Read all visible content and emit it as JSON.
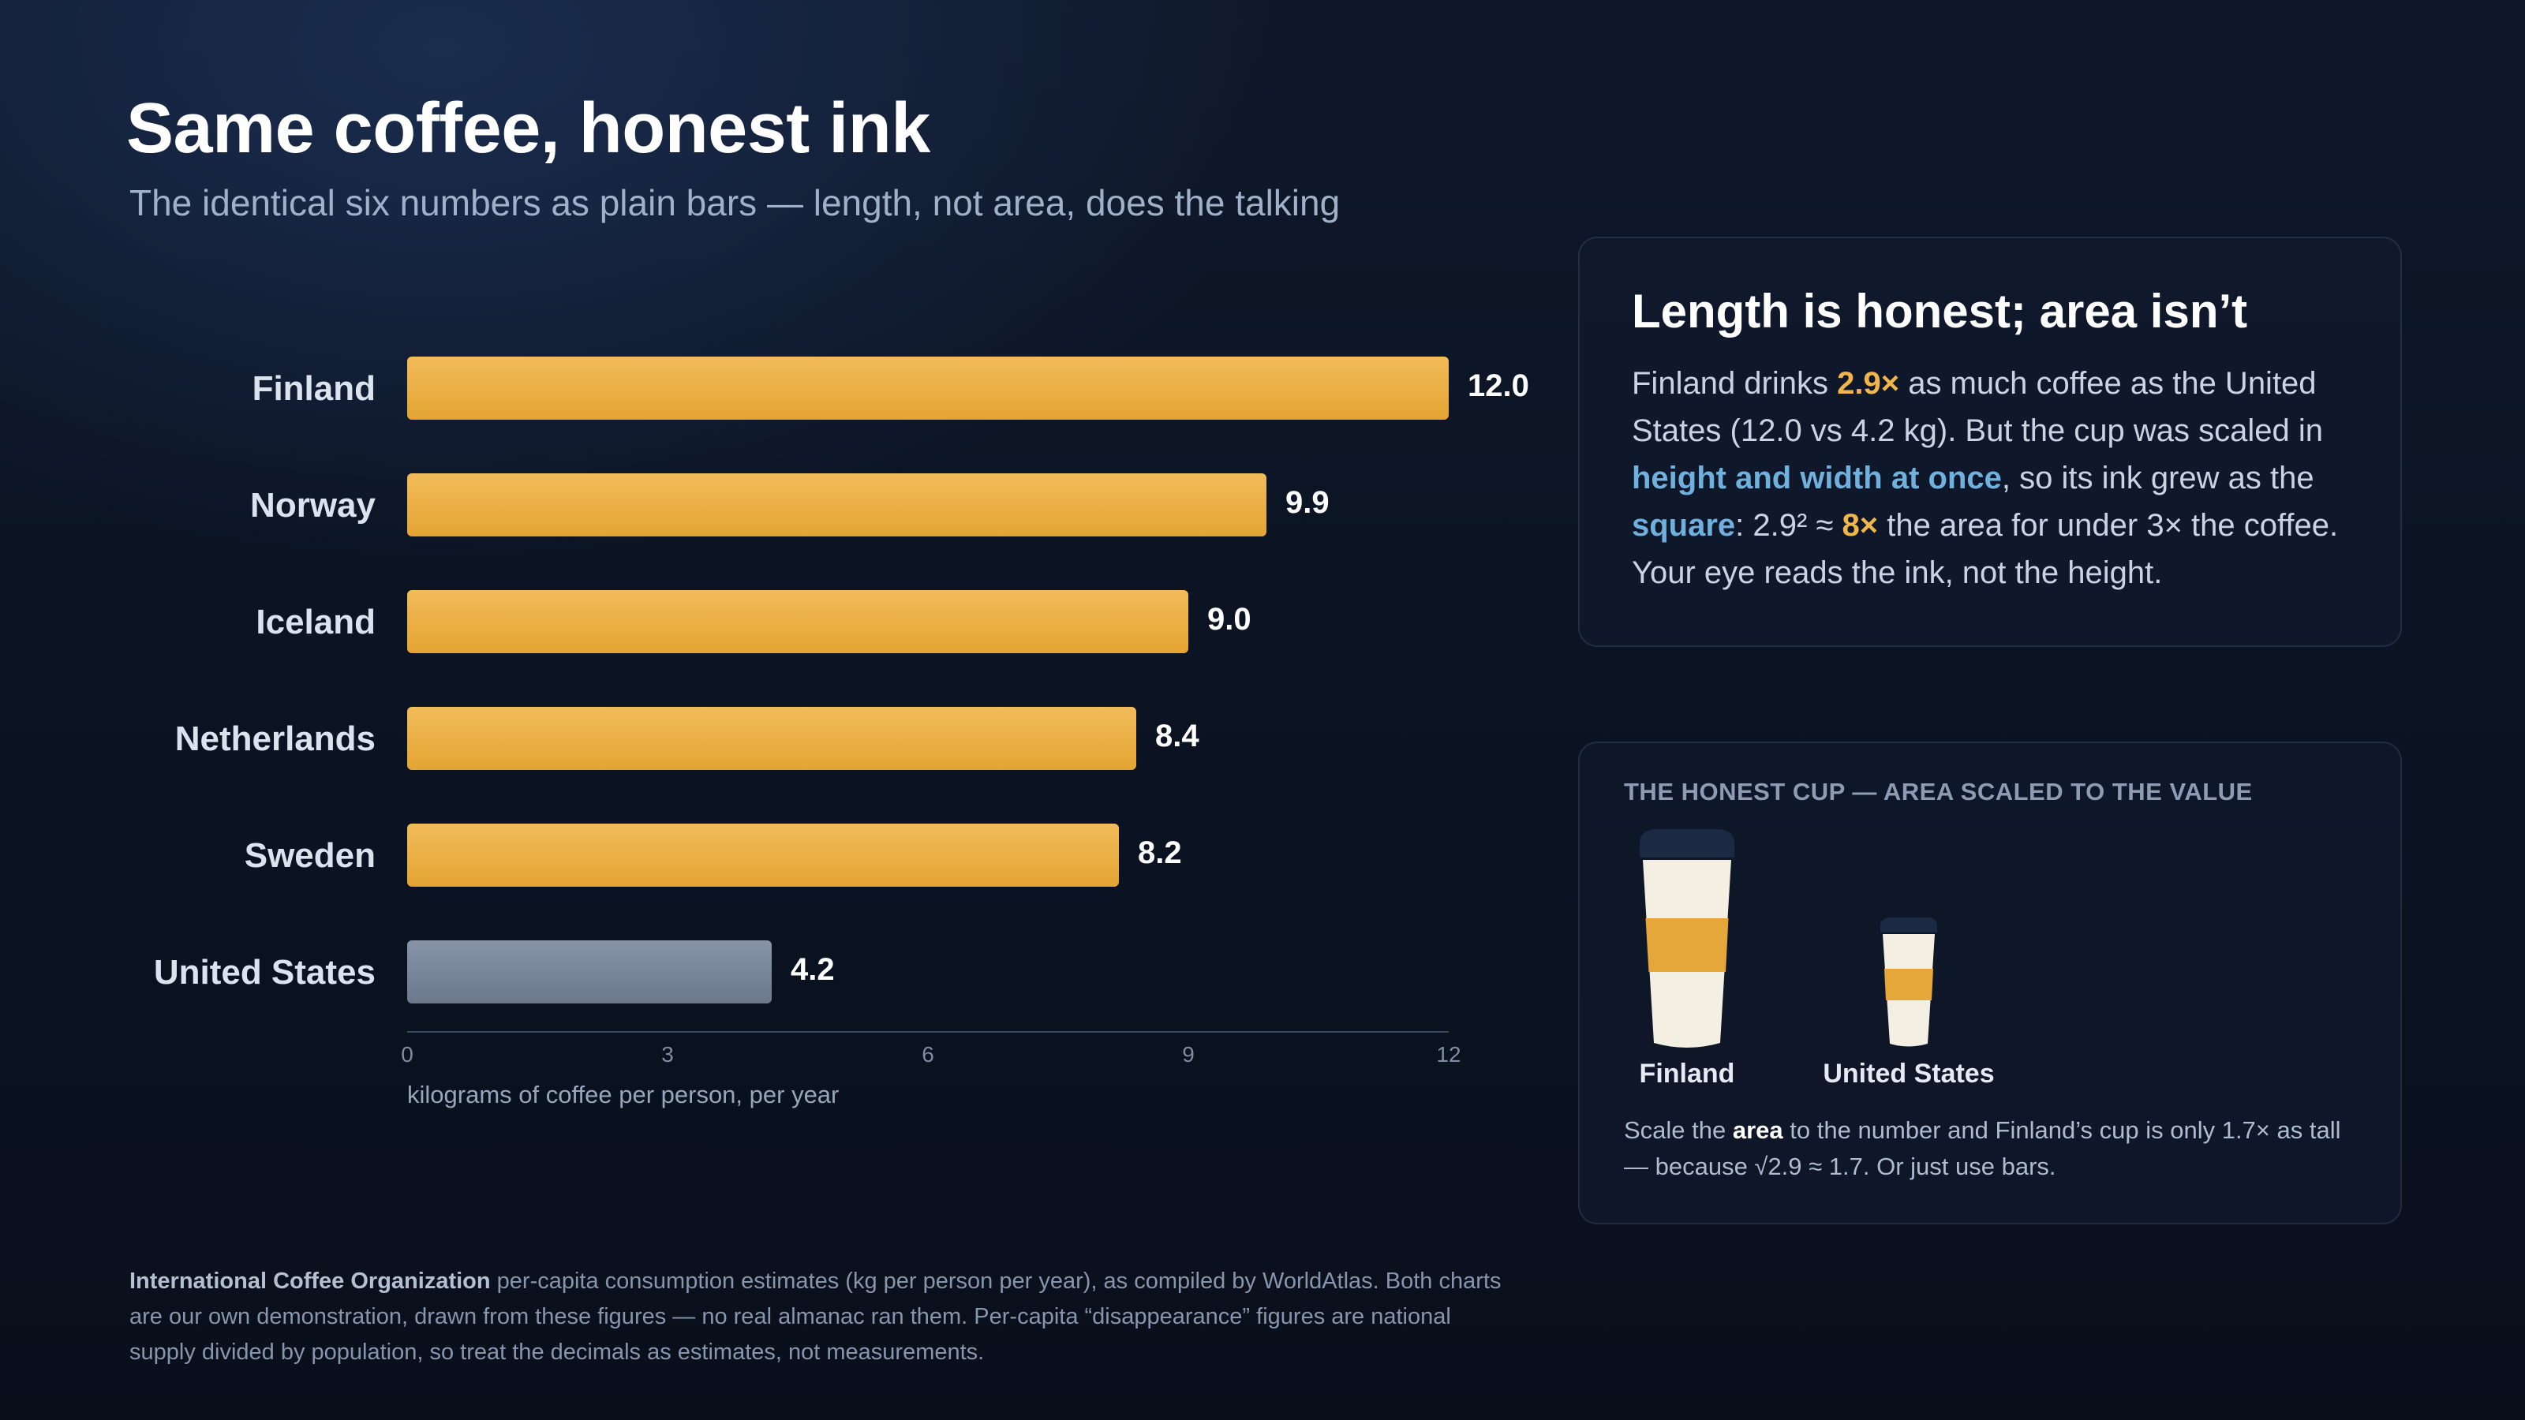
{
  "title": "Same coffee, honest ink",
  "subtitle": "The identical six numbers as plain bars — length, not area, does the talking",
  "chart_data": {
    "type": "bar",
    "orientation": "horizontal",
    "categories": [
      "Finland",
      "Norway",
      "Iceland",
      "Netherlands",
      "Sweden",
      "United States"
    ],
    "values": [
      12.0,
      9.9,
      9.0,
      8.4,
      8.2,
      4.2
    ],
    "value_labels": [
      "12.0",
      "9.9",
      "9.0",
      "8.4",
      "8.2",
      "4.2"
    ],
    "xlim": [
      0,
      12
    ],
    "xticks": [
      0,
      3,
      6,
      9,
      12
    ],
    "xlabel": "kilograms of coffee per person, per year",
    "colors": {
      "bar": "#eab04a",
      "bar_highlight": "#7a879b"
    },
    "highlight": "United States",
    "grid": false
  },
  "callout": {
    "title": "Length is honest; area isn’t",
    "p1": "Finland drinks ",
    "ratio": "2.9×",
    "p2": " as much coffee as the United States (12.0 vs 4.2 kg). But the cup was scaled in ",
    "scaled": "height and width at once",
    "p3": ", so its ink grew as the ",
    "square": "square",
    "p4": ": 2.9² ≈ ",
    "area_ratio": "8×",
    "p5": " the area for under 3× the coffee. Your eye reads the ink, not the height."
  },
  "honest_cup": {
    "eyebrow": "THE HONEST CUP — AREA SCALED TO THE VALUE",
    "cups": [
      {
        "label": "Finland",
        "value": 12.0
      },
      {
        "label": "United States",
        "value": 4.2
      }
    ],
    "note_1": "Scale the ",
    "note_bold": "area",
    "note_2": " to the number and Finland’s cup is only 1.7× as tall — because √2.9 ≈ 1.7. Or just use bars."
  },
  "source": {
    "org": "International Coffee Organization",
    "text": " per-capita consumption estimates (kg per person per year), as compiled by WorldAtlas. Both charts are our own demonstration, drawn from these figures — no real almanac ran them. Per-capita “disappearance” figures are national supply divided by population, so treat the decimals as estimates, not measurements."
  }
}
